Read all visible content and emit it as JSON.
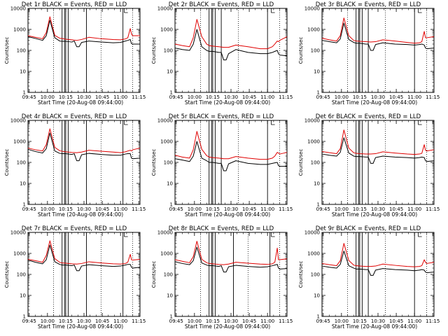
{
  "chart_data": {
    "type": "line",
    "y_axis": {
      "label": "Counts/sec",
      "scale": "log",
      "range": [
        1,
        10000
      ],
      "tick_labels": [
        "1",
        "10",
        "100",
        "1000",
        "10000"
      ]
    },
    "x_axis": {
      "range_minutes_after_0944": [
        0,
        92
      ],
      "tick_labels": [
        "09:45",
        "10:00",
        "10:15",
        "10:30",
        "10:45",
        "11:00",
        "11:15"
      ]
    },
    "grid": false,
    "colors": {
      "events": "#000000",
      "lld": "#e00000",
      "axes": "#000000",
      "background": "#ffffff"
    },
    "panels": [
      {
        "title": "Det 1r BLACK = Events, RED = LLD",
        "xlabel": "Start Time (20-Aug-08 09:44:00)",
        "events": {
          "x": [
            0,
            6,
            12,
            15,
            18,
            22,
            26,
            28,
            31,
            36,
            38,
            40,
            42,
            44,
            50,
            60,
            70,
            76,
            80,
            82,
            84,
            85,
            86,
            92
          ],
          "y": [
            450,
            370,
            300,
            500,
            2700,
            400,
            280,
            270,
            270,
            250,
            280,
            150,
            150,
            240,
            280,
            250,
            230,
            240,
            280,
            300,
            330,
            210,
            200,
            200
          ]
        },
        "lld": {
          "x": [
            0,
            6,
            12,
            15,
            18,
            22,
            26,
            28,
            31,
            36,
            40,
            44,
            50,
            60,
            70,
            76,
            80,
            82,
            84,
            85,
            86,
            92
          ],
          "y": [
            500,
            420,
            360,
            700,
            4000,
            520,
            380,
            370,
            340,
            320,
            300,
            330,
            420,
            360,
            330,
            320,
            350,
            400,
            1100,
            600,
            500,
            500
          ]
        },
        "solid_markers": [
          28,
          30,
          31,
          33,
          48,
          78
        ],
        "dotted_markers": [
          21,
          60,
          86
        ]
      },
      {
        "title": "Det 2r BLACK = Events, RED = LLD",
        "xlabel": "Start Time (20-Aug-08 09:44:00)",
        "events": {
          "x": [
            0,
            6,
            12,
            15,
            18,
            22,
            26,
            28,
            31,
            36,
            38,
            40,
            42,
            44,
            50,
            60,
            70,
            76,
            80,
            82,
            84,
            85,
            86,
            92
          ],
          "y": [
            130,
            110,
            100,
            200,
            1000,
            150,
            100,
            90,
            90,
            80,
            80,
            35,
            35,
            70,
            110,
            80,
            70,
            70,
            80,
            90,
            100,
            70,
            60,
            55
          ]
        },
        "lld": {
          "x": [
            0,
            6,
            12,
            15,
            18,
            22,
            26,
            28,
            31,
            36,
            40,
            44,
            50,
            60,
            70,
            76,
            80,
            82,
            84,
            85,
            86,
            92
          ],
          "y": [
            200,
            170,
            150,
            400,
            3000,
            450,
            200,
            170,
            160,
            150,
            140,
            140,
            180,
            150,
            120,
            120,
            150,
            200,
            280,
            260,
            300,
            450
          ]
        },
        "solid_markers": [
          28,
          30,
          31,
          33,
          38,
          76
        ],
        "dotted_markers": [
          21,
          52,
          86
        ]
      },
      {
        "title": "Det 3r BLACK = Events, RED = LLD",
        "xlabel": "Start Time (20-Aug-08 09:44:00)",
        "events": {
          "x": [
            0,
            6,
            12,
            15,
            18,
            22,
            26,
            28,
            31,
            36,
            38,
            40,
            42,
            44,
            50,
            60,
            70,
            76,
            80,
            82,
            84,
            85,
            86,
            92
          ],
          "y": [
            300,
            260,
            230,
            350,
            2000,
            330,
            240,
            220,
            220,
            200,
            200,
            100,
            100,
            190,
            230,
            200,
            190,
            180,
            190,
            200,
            180,
            130,
            120,
            130
          ]
        },
        "lld": {
          "x": [
            0,
            6,
            12,
            15,
            18,
            22,
            26,
            28,
            31,
            36,
            40,
            44,
            50,
            60,
            70,
            76,
            80,
            82,
            84,
            85,
            86,
            92
          ],
          "y": [
            380,
            320,
            280,
            500,
            3500,
            500,
            300,
            280,
            270,
            260,
            250,
            260,
            320,
            280,
            240,
            220,
            230,
            260,
            800,
            400,
            400,
            450
          ]
        },
        "solid_markers": [
          28,
          30,
          31,
          33,
          38,
          76
        ],
        "dotted_markers": [
          21,
          52,
          86
        ]
      },
      {
        "title": "Det 4r BLACK = Events, RED = LLD",
        "xlabel": "Start Time (20-Aug-08 09:44:00)",
        "events": {
          "x": [
            0,
            6,
            12,
            15,
            18,
            22,
            26,
            28,
            31,
            36,
            38,
            40,
            42,
            44,
            50,
            60,
            70,
            76,
            80,
            82,
            84,
            85,
            86,
            92
          ],
          "y": [
            420,
            330,
            280,
            450,
            2500,
            350,
            270,
            260,
            260,
            240,
            260,
            120,
            120,
            230,
            270,
            240,
            220,
            220,
            250,
            260,
            260,
            160,
            150,
            160
          ]
        },
        "lld": {
          "x": [
            0,
            6,
            12,
            15,
            18,
            22,
            26,
            28,
            31,
            36,
            40,
            44,
            50,
            60,
            70,
            76,
            80,
            82,
            84,
            85,
            86,
            92
          ],
          "y": [
            480,
            400,
            350,
            700,
            4000,
            520,
            360,
            340,
            320,
            300,
            290,
            310,
            380,
            340,
            310,
            290,
            320,
            350,
            380,
            350,
            400,
            480
          ]
        },
        "solid_markers": [
          28,
          30,
          31,
          33,
          48,
          78
        ],
        "dotted_markers": [
          21,
          60,
          86
        ]
      },
      {
        "title": "Det 5r BLACK = Events, RED = LLD",
        "xlabel": "Start Time (20-Aug-08 09:44:00)",
        "events": {
          "x": [
            0,
            6,
            12,
            15,
            18,
            22,
            26,
            28,
            31,
            36,
            38,
            40,
            42,
            44,
            50,
            60,
            70,
            76,
            80,
            82,
            84,
            85,
            86,
            92
          ],
          "y": [
            150,
            130,
            110,
            200,
            1000,
            160,
            120,
            100,
            100,
            90,
            90,
            40,
            40,
            85,
            120,
            90,
            80,
            80,
            90,
            95,
            100,
            70,
            65,
            65
          ]
        },
        "lld": {
          "x": [
            0,
            6,
            12,
            15,
            18,
            22,
            26,
            28,
            31,
            36,
            40,
            44,
            50,
            60,
            70,
            76,
            80,
            82,
            84,
            85,
            86,
            92
          ],
          "y": [
            220,
            180,
            160,
            400,
            3000,
            420,
            210,
            180,
            170,
            160,
            150,
            150,
            190,
            160,
            140,
            140,
            160,
            200,
            300,
            280,
            250,
            300
          ]
        },
        "solid_markers": [
          28,
          30,
          31,
          33,
          38,
          76
        ],
        "dotted_markers": [
          21,
          52,
          86
        ]
      },
      {
        "title": "Det 6r BLACK = Events, RED = LLD",
        "xlabel": "Start Time (20-Aug-08 09:44:00)",
        "events": {
          "x": [
            0,
            6,
            12,
            15,
            18,
            22,
            26,
            28,
            31,
            36,
            38,
            40,
            42,
            44,
            50,
            60,
            70,
            76,
            80,
            82,
            84,
            85,
            86,
            92
          ],
          "y": [
            250,
            220,
            200,
            300,
            1500,
            280,
            200,
            190,
            190,
            180,
            180,
            90,
            90,
            170,
            200,
            180,
            170,
            160,
            170,
            180,
            170,
            120,
            110,
            120
          ]
        },
        "lld": {
          "x": [
            0,
            6,
            12,
            15,
            18,
            22,
            26,
            28,
            31,
            36,
            40,
            44,
            50,
            60,
            70,
            76,
            80,
            82,
            84,
            85,
            86,
            92
          ],
          "y": [
            330,
            290,
            260,
            450,
            3500,
            480,
            290,
            270,
            260,
            250,
            250,
            260,
            320,
            280,
            250,
            240,
            250,
            270,
            700,
            380,
            350,
            400
          ]
        },
        "solid_markers": [
          28,
          30,
          31,
          33,
          38,
          76
        ],
        "dotted_markers": [
          21,
          52,
          86
        ]
      },
      {
        "title": "Det 7r BLACK = Events, RED = LLD",
        "xlabel": "Start Time (20-Aug-08 09:44:00)",
        "events": {
          "x": [
            0,
            6,
            12,
            15,
            18,
            22,
            26,
            28,
            31,
            36,
            38,
            40,
            42,
            44,
            50,
            60,
            70,
            76,
            80,
            82,
            84,
            85,
            86,
            92
          ],
          "y": [
            480,
            380,
            320,
            500,
            2500,
            400,
            300,
            280,
            280,
            260,
            280,
            150,
            150,
            250,
            290,
            260,
            240,
            250,
            280,
            300,
            300,
            220,
            200,
            220
          ]
        },
        "lld": {
          "x": [
            0,
            6,
            12,
            15,
            18,
            22,
            26,
            28,
            31,
            36,
            40,
            44,
            50,
            60,
            70,
            76,
            80,
            82,
            84,
            85,
            86,
            92
          ],
          "y": [
            520,
            450,
            380,
            800,
            4000,
            560,
            380,
            350,
            340,
            320,
            310,
            330,
            400,
            350,
            320,
            310,
            330,
            380,
            900,
            500,
            480,
            520
          ]
        },
        "solid_markers": [
          28,
          30,
          31,
          33,
          48,
          78
        ],
        "dotted_markers": [
          21,
          60,
          86
        ]
      },
      {
        "title": "Det 8r BLACK = Events, RED = LLD",
        "xlabel": "Start Time (20-Aug-08 09:44:00)",
        "events": {
          "x": [
            0,
            6,
            12,
            15,
            18,
            22,
            26,
            28,
            31,
            36,
            38,
            40,
            42,
            44,
            50,
            60,
            70,
            76,
            80,
            82,
            84,
            85,
            86,
            92
          ],
          "y": [
            400,
            330,
            290,
            450,
            2000,
            350,
            280,
            260,
            260,
            240,
            260,
            130,
            130,
            230,
            270,
            240,
            220,
            230,
            260,
            280,
            300,
            200,
            180,
            190
          ]
        },
        "lld": {
          "x": [
            0,
            6,
            12,
            15,
            18,
            22,
            26,
            28,
            31,
            36,
            40,
            44,
            50,
            60,
            70,
            76,
            80,
            82,
            84,
            85,
            86,
            92
          ],
          "y": [
            500,
            420,
            360,
            700,
            3800,
            520,
            360,
            330,
            320,
            300,
            290,
            310,
            380,
            340,
            310,
            300,
            320,
            380,
            1800,
            500,
            500,
            550
          ]
        },
        "solid_markers": [
          28,
          30,
          31,
          33,
          48,
          78
        ],
        "dotted_markers": [
          21,
          60,
          86
        ]
      },
      {
        "title": "Det 9r BLACK = Events, RED = LLD",
        "xlabel": "Start Time (20-Aug-08 09:44:00)",
        "events": {
          "x": [
            0,
            6,
            12,
            15,
            18,
            22,
            26,
            28,
            31,
            36,
            38,
            40,
            42,
            44,
            50,
            60,
            70,
            76,
            80,
            82,
            84,
            85,
            86,
            92
          ],
          "y": [
            250,
            220,
            200,
            300,
            1300,
            260,
            200,
            180,
            180,
            170,
            170,
            90,
            90,
            160,
            190,
            170,
            160,
            150,
            160,
            170,
            160,
            130,
            120,
            130
          ]
        },
        "lld": {
          "x": [
            0,
            6,
            12,
            15,
            18,
            22,
            26,
            28,
            31,
            36,
            40,
            44,
            50,
            60,
            70,
            76,
            80,
            82,
            84,
            85,
            86,
            92
          ],
          "y": [
            330,
            290,
            260,
            450,
            3000,
            460,
            280,
            260,
            250,
            240,
            240,
            250,
            310,
            270,
            240,
            230,
            240,
            260,
            500,
            380,
            330,
            380
          ]
        },
        "solid_markers": [
          28,
          30,
          31,
          33,
          38,
          76
        ],
        "dotted_markers": [
          21,
          52,
          86
        ]
      }
    ]
  }
}
